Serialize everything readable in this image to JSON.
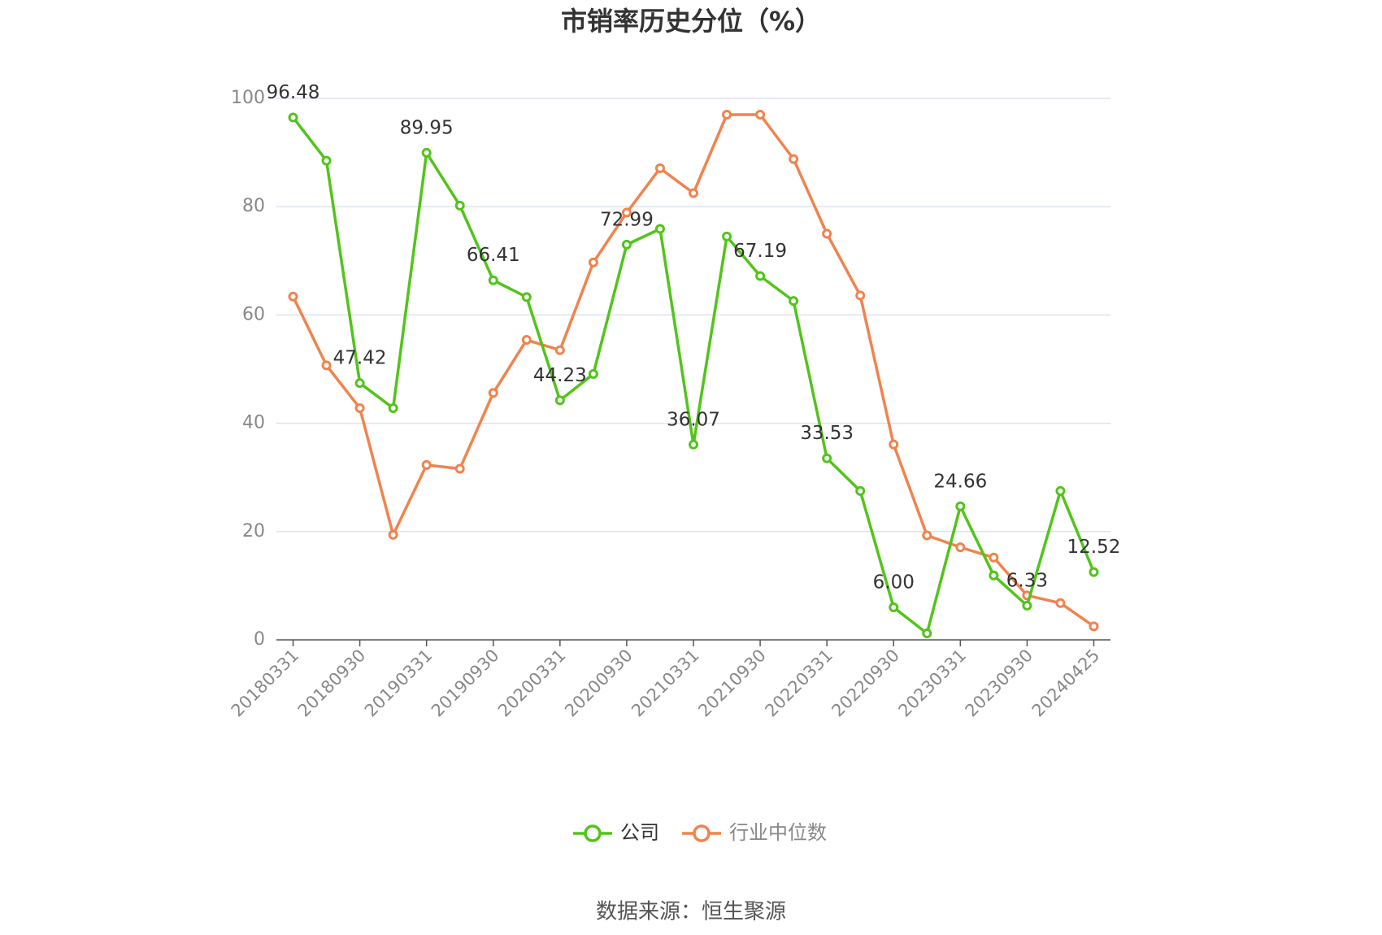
{
  "chart_data": {
    "type": "line",
    "title": "市销率历史分位（%）",
    "categories": [
      "20180331",
      null,
      "20180930",
      null,
      "20190331",
      null,
      "20190930",
      null,
      "20200331",
      null,
      "20200930",
      null,
      "20210331",
      null,
      "20210930",
      null,
      "20220331",
      null,
      "20220930",
      null,
      "20230331",
      null,
      "20230930",
      null,
      "20240425"
    ],
    "series": [
      {
        "name": "公司",
        "color": "#52c41a",
        "values": [
          96.48,
          88.5,
          47.42,
          42.8,
          89.95,
          80.2,
          66.41,
          63.3,
          44.23,
          49.1,
          72.99,
          75.9,
          36.07,
          74.5,
          67.19,
          62.6,
          33.53,
          27.5,
          6,
          1.2,
          24.66,
          11.9,
          6.33,
          27.5,
          12.52
        ],
        "value_labels": [
          "96.48",
          null,
          "47.42",
          null,
          "89.95",
          null,
          "66.41",
          null,
          "44.23",
          null,
          "72.99",
          null,
          "36.07",
          null,
          "67.19",
          null,
          "33.53",
          null,
          "6.00",
          null,
          "24.66",
          null,
          "6.33",
          null,
          "12.52"
        ]
      },
      {
        "name": "行业中位数",
        "color": "#f0834e",
        "values": [
          63.4,
          50.7,
          42.8,
          19.4,
          32.3,
          31.6,
          45.6,
          55.4,
          53.5,
          69.7,
          78.9,
          87.1,
          82.5,
          97.0,
          97.0,
          88.8,
          75.0,
          63.6,
          36.1,
          19.3,
          17.1,
          15.2,
          8.2,
          6.8,
          2.5
        ]
      }
    ],
    "ylim": [
      0,
      100
    ],
    "yticks": [
      0,
      20,
      40,
      60,
      80,
      100
    ],
    "grid": true,
    "source": "数据来源：恒生聚源"
  }
}
